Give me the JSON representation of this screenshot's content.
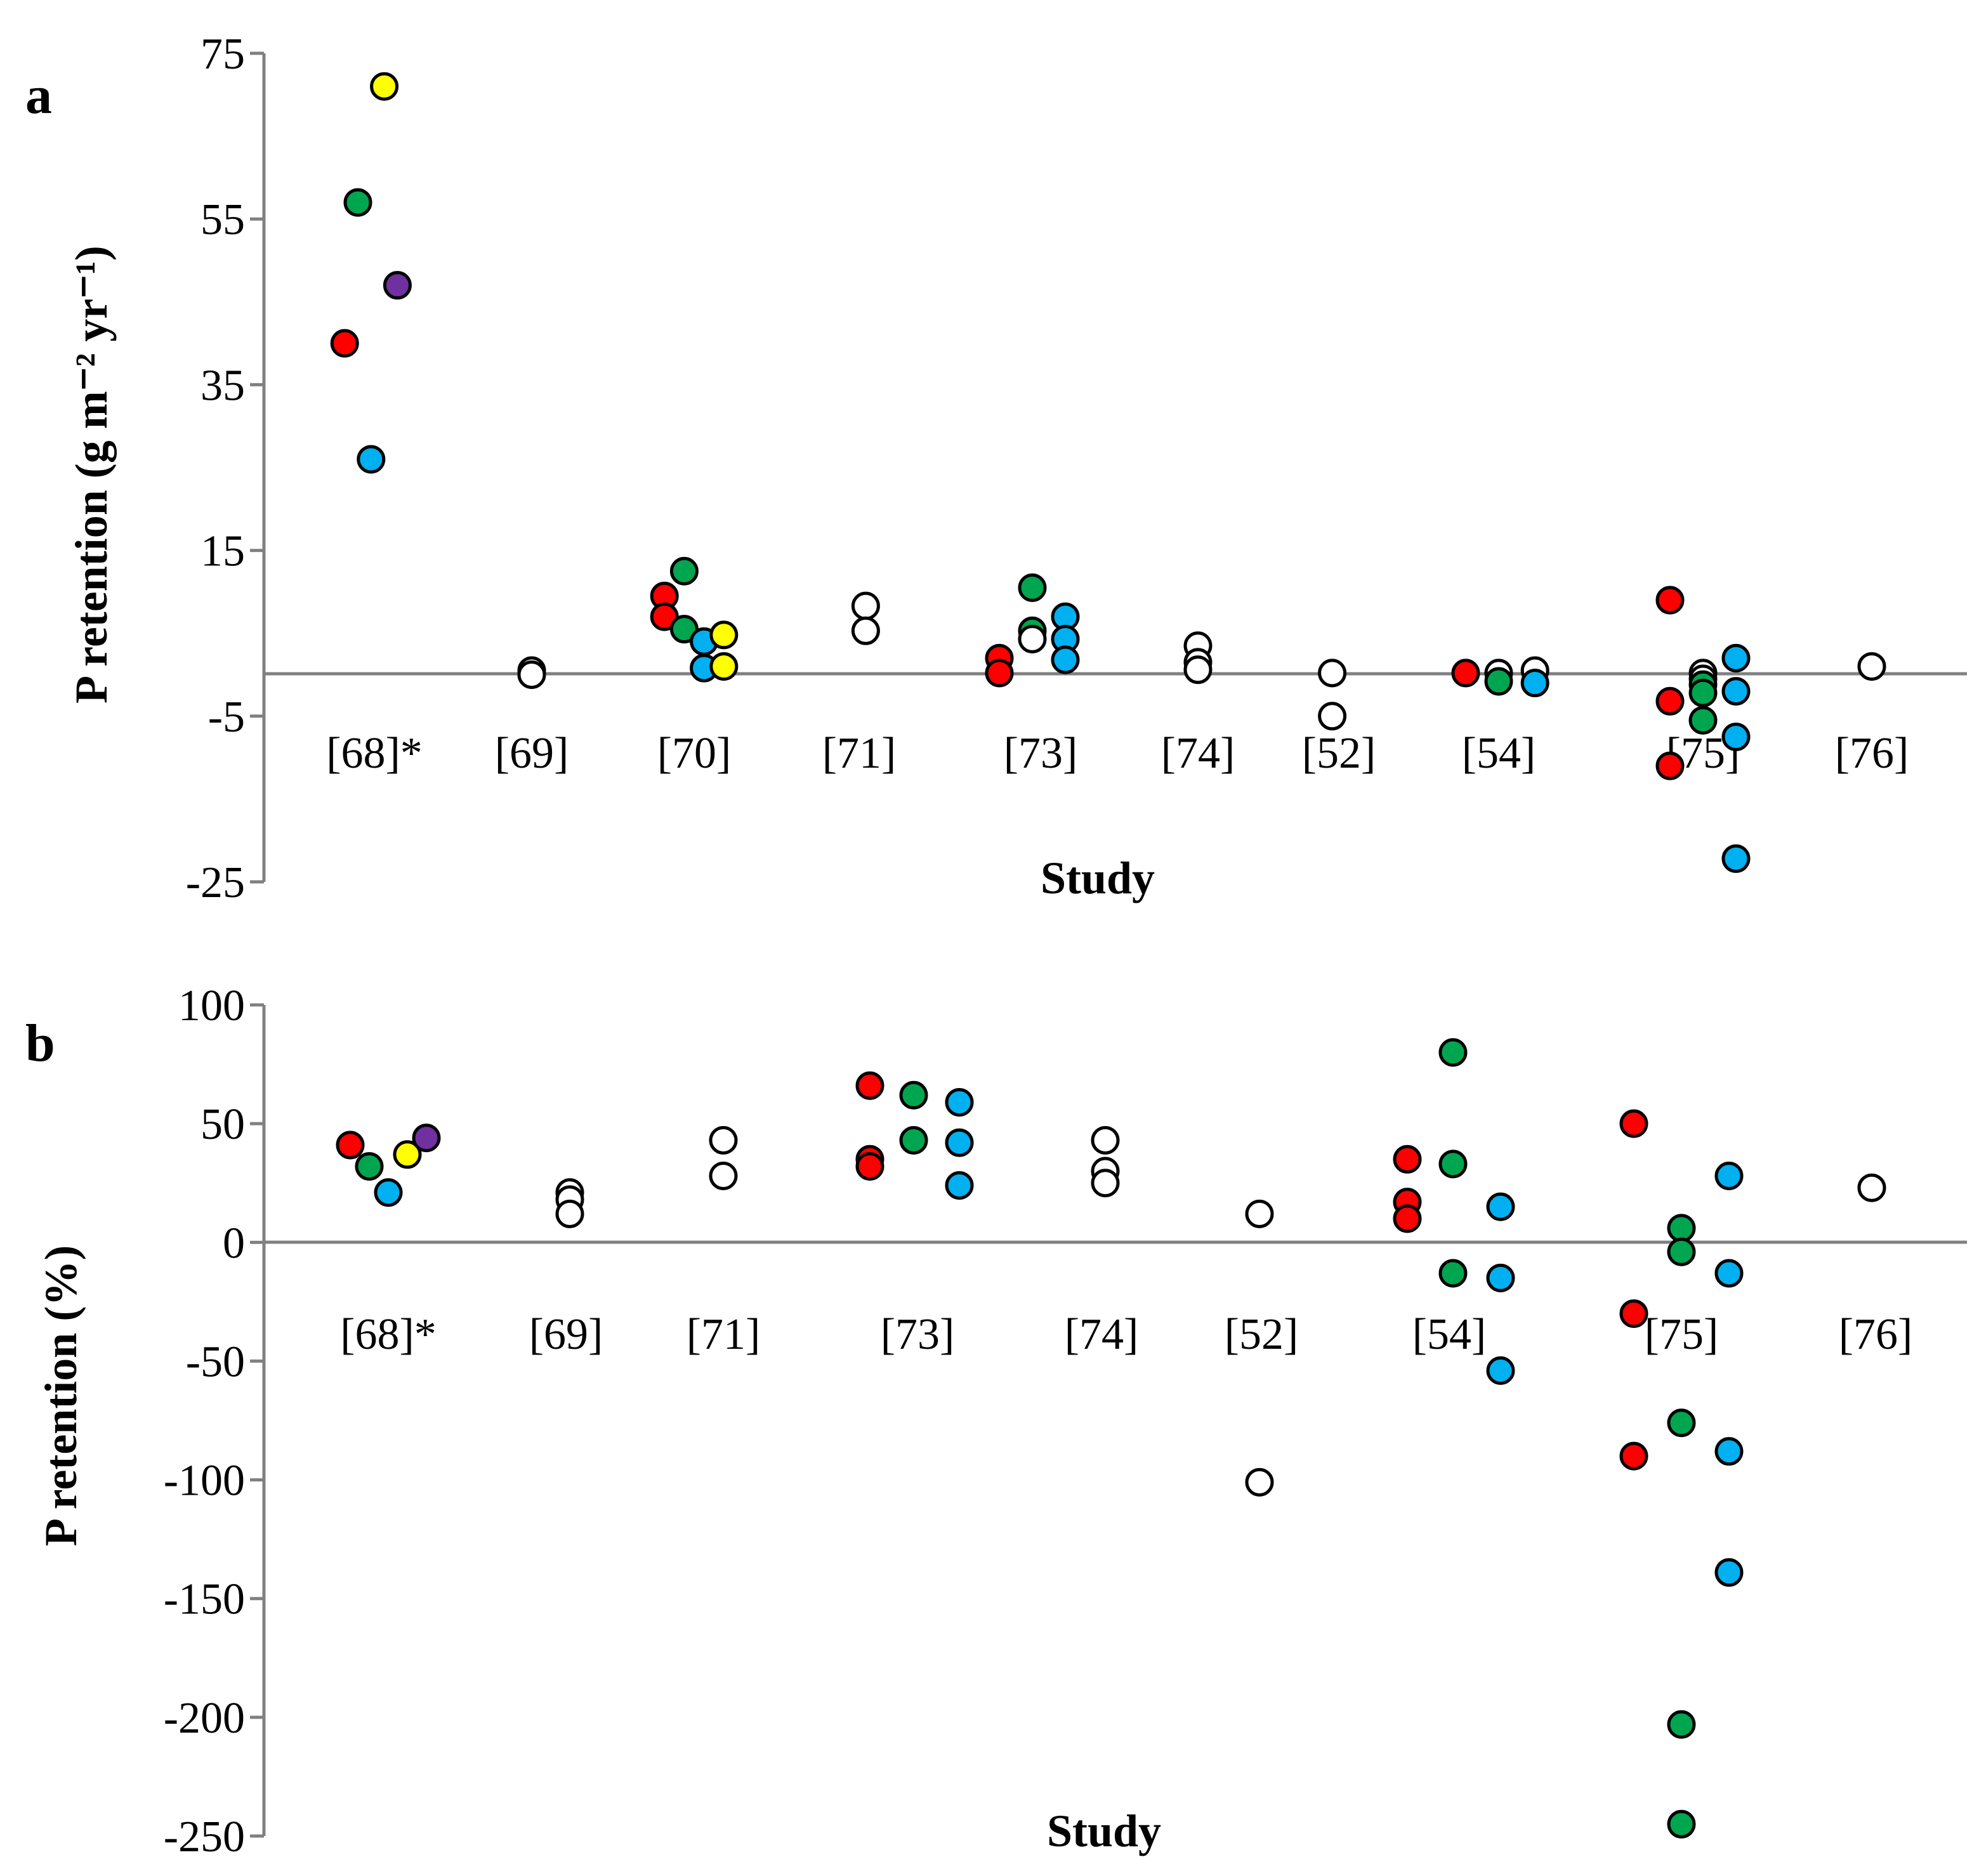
{
  "palette": {
    "red": "#ff0000",
    "green": "#00a64f",
    "blue": "#00b0f0",
    "yellow": "#ffff00",
    "purple": "#7030a0",
    "white": "#ffffff"
  },
  "chart_data": [
    {
      "panel": "a",
      "type": "scatter",
      "xlabel": "Study",
      "ylabel": "P retention (g m⁻² yr⁻¹)",
      "ylim": [
        -25,
        75
      ],
      "yticks": [
        "75",
        "55",
        "35",
        "15",
        "-5",
        "-25"
      ],
      "ytick_values": [
        75,
        55,
        35,
        15,
        -5,
        -25
      ],
      "zero_line": 0,
      "categories": [
        "[68]*",
        "[69]",
        "[70]",
        "[71]",
        "[73]",
        "[74]",
        "[52]",
        "[54]",
        "[75]",
        "[76]"
      ],
      "points": [
        {
          "cat": 0,
          "dx": -0.18,
          "y": 40,
          "color": "red"
        },
        {
          "cat": 0,
          "dx": -0.1,
          "y": 57,
          "color": "green"
        },
        {
          "cat": 0,
          "dx": -0.02,
          "y": 26,
          "color": "blue"
        },
        {
          "cat": 0,
          "dx": 0.06,
          "y": 71,
          "color": "yellow"
        },
        {
          "cat": 0,
          "dx": 0.14,
          "y": 47,
          "color": "purple"
        },
        {
          "cat": 1,
          "dx": 0.0,
          "y": 0.5,
          "color": "white"
        },
        {
          "cat": 1,
          "dx": 0.0,
          "y": 0.0,
          "color": "white"
        },
        {
          "cat": 2,
          "dx": -0.18,
          "y": 9.5,
          "color": "red"
        },
        {
          "cat": 2,
          "dx": -0.18,
          "y": 7.0,
          "color": "red"
        },
        {
          "cat": 2,
          "dx": -0.06,
          "y": 12.5,
          "color": "green"
        },
        {
          "cat": 2,
          "dx": -0.06,
          "y": 5.5,
          "color": "green"
        },
        {
          "cat": 2,
          "dx": 0.06,
          "y": 4.0,
          "color": "blue"
        },
        {
          "cat": 2,
          "dx": 0.06,
          "y": 0.8,
          "color": "blue"
        },
        {
          "cat": 2,
          "dx": 0.18,
          "y": 4.8,
          "color": "yellow"
        },
        {
          "cat": 2,
          "dx": 0.18,
          "y": 1.0,
          "color": "yellow"
        },
        {
          "cat": 3,
          "dx": 0.04,
          "y": 8.3,
          "color": "white"
        },
        {
          "cat": 3,
          "dx": 0.04,
          "y": 5.3,
          "color": "white"
        },
        {
          "cat": 4,
          "dx": -0.25,
          "y": 2.0,
          "color": "red"
        },
        {
          "cat": 4,
          "dx": -0.25,
          "y": 0.2,
          "color": "red"
        },
        {
          "cat": 4,
          "dx": -0.05,
          "y": 10.5,
          "color": "green"
        },
        {
          "cat": 4,
          "dx": -0.05,
          "y": 5.3,
          "color": "green"
        },
        {
          "cat": 4,
          "dx": -0.05,
          "y": 4.3,
          "color": "white"
        },
        {
          "cat": 4,
          "dx": 0.15,
          "y": 7.0,
          "color": "blue"
        },
        {
          "cat": 4,
          "dx": 0.15,
          "y": 4.3,
          "color": "blue"
        },
        {
          "cat": 4,
          "dx": 0.15,
          "y": 1.8,
          "color": "blue"
        },
        {
          "cat": 5,
          "dx": 0.0,
          "y": 3.5,
          "color": "white"
        },
        {
          "cat": 5,
          "dx": 0.0,
          "y": 1.5,
          "color": "white"
        },
        {
          "cat": 5,
          "dx": 0.0,
          "y": 0.6,
          "color": "white"
        },
        {
          "cat": 6,
          "dx": -0.04,
          "y": 0.2,
          "color": "white"
        },
        {
          "cat": 6,
          "dx": -0.04,
          "y": -5.0,
          "color": "white"
        },
        {
          "cat": 7,
          "dx": -0.2,
          "y": 0.2,
          "color": "red"
        },
        {
          "cat": 7,
          "dx": 0.0,
          "y": 0.2,
          "color": "white"
        },
        {
          "cat": 7,
          "dx": 0.0,
          "y": -0.8,
          "color": "green"
        },
        {
          "cat": 7,
          "dx": 0.22,
          "y": 0.5,
          "color": "white"
        },
        {
          "cat": 7,
          "dx": 0.22,
          "y": -1.0,
          "color": "blue"
        },
        {
          "cat": 8,
          "dx": -0.2,
          "y": 9.0,
          "color": "red"
        },
        {
          "cat": 8,
          "dx": -0.2,
          "y": -3.2,
          "color": "red"
        },
        {
          "cat": 8,
          "dx": -0.2,
          "y": -11.0,
          "color": "red"
        },
        {
          "cat": 8,
          "dx": 0.0,
          "y": 0.2,
          "color": "white"
        },
        {
          "cat": 8,
          "dx": 0.0,
          "y": -0.5,
          "color": "white"
        },
        {
          "cat": 8,
          "dx": 0.0,
          "y": -1.2,
          "color": "green"
        },
        {
          "cat": 8,
          "dx": 0.0,
          "y": -2.2,
          "color": "green"
        },
        {
          "cat": 8,
          "dx": 0.0,
          "y": -5.5,
          "color": "green"
        },
        {
          "cat": 8,
          "dx": 0.2,
          "y": 2.0,
          "color": "blue"
        },
        {
          "cat": 8,
          "dx": 0.2,
          "y": -2.0,
          "color": "blue"
        },
        {
          "cat": 8,
          "dx": 0.2,
          "y": -7.5,
          "color": "blue"
        },
        {
          "cat": 8,
          "dx": 0.2,
          "y": -22.2,
          "color": "blue"
        },
        {
          "cat": 9,
          "dx": 0.0,
          "y": 1.0,
          "color": "white"
        }
      ]
    },
    {
      "panel": "b",
      "type": "scatter",
      "xlabel": "Study",
      "ylabel": "P retention (%)",
      "ylim": [
        -250,
        100
      ],
      "yticks": [
        "100",
        "50",
        "0",
        "-50",
        "-100",
        "-150",
        "-200",
        "-250"
      ],
      "ytick_values": [
        100,
        50,
        0,
        -50,
        -100,
        -150,
        -200,
        -250
      ],
      "zero_line": 0,
      "categories": [
        "[68]*",
        "[69]",
        "[71]",
        "[73]",
        "[74]",
        "[52]",
        "[54]",
        "[75]",
        "[76]"
      ],
      "points": [
        {
          "cat": 0,
          "dx": -0.2,
          "y": 41,
          "color": "red"
        },
        {
          "cat": 0,
          "dx": -0.1,
          "y": 32,
          "color": "green"
        },
        {
          "cat": 0,
          "dx": 0.0,
          "y": 21,
          "color": "blue"
        },
        {
          "cat": 0,
          "dx": 0.1,
          "y": 37,
          "color": "yellow"
        },
        {
          "cat": 0,
          "dx": 0.2,
          "y": 44,
          "color": "purple"
        },
        {
          "cat": 1,
          "dx": 0.02,
          "y": 21,
          "color": "white"
        },
        {
          "cat": 1,
          "dx": 0.02,
          "y": 18,
          "color": "white"
        },
        {
          "cat": 1,
          "dx": 0.02,
          "y": 12,
          "color": "white"
        },
        {
          "cat": 2,
          "dx": 0.0,
          "y": 43,
          "color": "white"
        },
        {
          "cat": 2,
          "dx": 0.0,
          "y": 28,
          "color": "white"
        },
        {
          "cat": 3,
          "dx": -0.25,
          "y": 66,
          "color": "red"
        },
        {
          "cat": 3,
          "dx": -0.25,
          "y": 35,
          "color": "red"
        },
        {
          "cat": 3,
          "dx": -0.25,
          "y": 32,
          "color": "red"
        },
        {
          "cat": 3,
          "dx": -0.02,
          "y": 62,
          "color": "green"
        },
        {
          "cat": 3,
          "dx": -0.02,
          "y": 43,
          "color": "green"
        },
        {
          "cat": 3,
          "dx": 0.22,
          "y": 59,
          "color": "blue"
        },
        {
          "cat": 3,
          "dx": 0.22,
          "y": 42,
          "color": "blue"
        },
        {
          "cat": 3,
          "dx": 0.22,
          "y": 24,
          "color": "blue"
        },
        {
          "cat": 4,
          "dx": 0.02,
          "y": 43,
          "color": "white"
        },
        {
          "cat": 4,
          "dx": 0.02,
          "y": 30,
          "color": "white"
        },
        {
          "cat": 4,
          "dx": 0.02,
          "y": 25,
          "color": "white"
        },
        {
          "cat": 5,
          "dx": -0.01,
          "y": 12,
          "color": "white"
        },
        {
          "cat": 5,
          "dx": -0.01,
          "y": -101,
          "color": "white"
        },
        {
          "cat": 6,
          "dx": -0.22,
          "y": 35,
          "color": "red"
        },
        {
          "cat": 6,
          "dx": -0.22,
          "y": 17,
          "color": "red"
        },
        {
          "cat": 6,
          "dx": -0.22,
          "y": 10,
          "color": "red"
        },
        {
          "cat": 6,
          "dx": 0.02,
          "y": 80,
          "color": "green"
        },
        {
          "cat": 6,
          "dx": 0.02,
          "y": 33,
          "color": "green"
        },
        {
          "cat": 6,
          "dx": 0.02,
          "y": -13,
          "color": "green"
        },
        {
          "cat": 6,
          "dx": 0.27,
          "y": 15,
          "color": "blue"
        },
        {
          "cat": 6,
          "dx": 0.27,
          "y": -15,
          "color": "blue"
        },
        {
          "cat": 6,
          "dx": 0.27,
          "y": -54,
          "color": "blue"
        },
        {
          "cat": 7,
          "dx": -0.25,
          "y": 50,
          "color": "red"
        },
        {
          "cat": 7,
          "dx": -0.25,
          "y": -30,
          "color": "red"
        },
        {
          "cat": 7,
          "dx": -0.25,
          "y": -90,
          "color": "red"
        },
        {
          "cat": 7,
          "dx": 0.0,
          "y": 6,
          "color": "green"
        },
        {
          "cat": 7,
          "dx": 0.0,
          "y": -4,
          "color": "green"
        },
        {
          "cat": 7,
          "dx": 0.0,
          "y": -76,
          "color": "green"
        },
        {
          "cat": 7,
          "dx": 0.0,
          "y": -203,
          "color": "green"
        },
        {
          "cat": 7,
          "dx": 0.0,
          "y": -245,
          "color": "green"
        },
        {
          "cat": 7,
          "dx": 0.25,
          "y": 28,
          "color": "blue"
        },
        {
          "cat": 7,
          "dx": 0.25,
          "y": -13,
          "color": "blue"
        },
        {
          "cat": 7,
          "dx": 0.25,
          "y": -88,
          "color": "blue"
        },
        {
          "cat": 7,
          "dx": 0.25,
          "y": -139,
          "color": "blue"
        },
        {
          "cat": 8,
          "dx": -0.02,
          "y": 23,
          "color": "white"
        }
      ]
    }
  ]
}
